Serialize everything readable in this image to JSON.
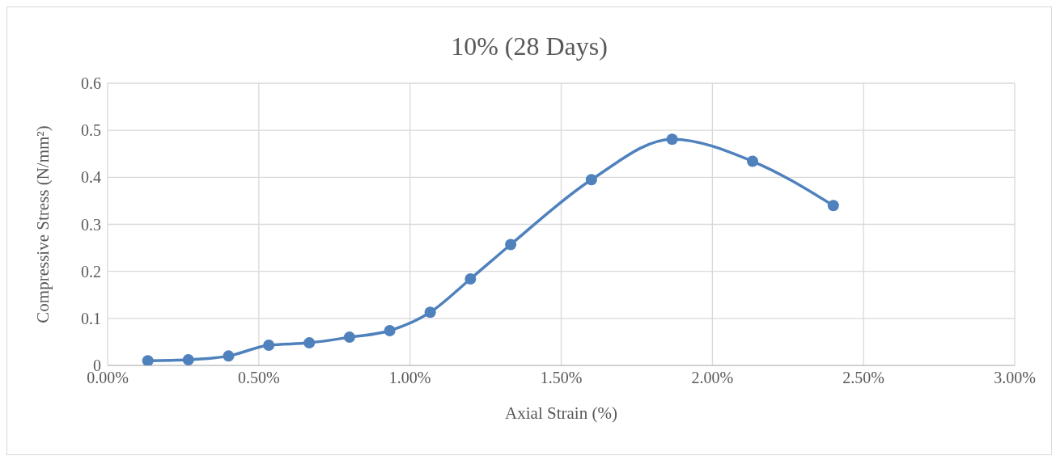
{
  "chart_data": {
    "type": "line",
    "title": "10% (28 Days)",
    "xlabel": "Axial Strain (%)",
    "ylabel": "Compressive Stress (N/mm²)",
    "x": [
      0.133,
      0.267,
      0.4,
      0.533,
      0.667,
      0.8,
      0.933,
      1.067,
      1.2,
      1.333,
      1.6,
      1.867,
      2.133,
      2.4
    ],
    "series": [
      {
        "color": "#4f81bd",
        "values": [
          0.01,
          0.012,
          0.02,
          0.043,
          0.048,
          0.06,
          0.074,
          0.113,
          0.184,
          0.257,
          0.395,
          0.481,
          0.434,
          0.34
        ]
      }
    ],
    "xlim": [
      0,
      3
    ],
    "xticks": [
      {
        "value": 0,
        "label": "0.00%"
      },
      {
        "value": 0.5,
        "label": "0.50%"
      },
      {
        "value": 1,
        "label": "1.00%"
      },
      {
        "value": 1.5,
        "label": "1.50%"
      },
      {
        "value": 2,
        "label": "2.00%"
      },
      {
        "value": 2.5,
        "label": "2.50%"
      },
      {
        "value": 3,
        "label": "3.00%"
      }
    ],
    "ylim": [
      0,
      0.6
    ],
    "yticks": [
      0,
      0.1,
      0.2,
      0.3,
      0.4,
      0.5,
      0.6
    ],
    "grid": true,
    "marker": "circle",
    "line_style": "solid"
  }
}
